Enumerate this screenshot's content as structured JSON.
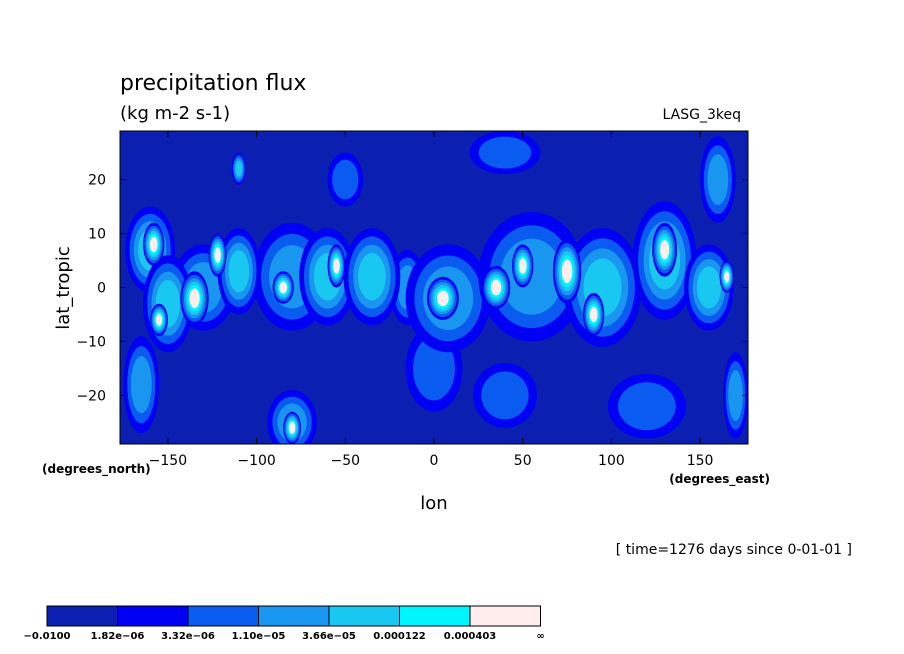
{
  "chart_data": {
    "type": "heatmap",
    "title": "precipitation flux",
    "units": "(kg m-2 s-1)",
    "dataset": "LASG_3keq",
    "xlabel": "lon",
    "ylabel": "lat_tropic",
    "x_units": "(degrees_east)",
    "y_units": "(degrees_north)",
    "time_note": "[ time=1276 days since 0-01-01 ]",
    "xlim": [
      -177,
      177
    ],
    "ylim": [
      -29,
      29
    ],
    "x_ticks": [
      -150,
      -100,
      -50,
      0,
      50,
      100,
      150
    ],
    "x_tick_labels": [
      "−150",
      "−100",
      "−50",
      "0",
      "50",
      "100",
      "150"
    ],
    "y_ticks": [
      20,
      10,
      0,
      -10,
      -20
    ],
    "y_tick_labels": [
      "20",
      "10",
      "0",
      "−10",
      "−20"
    ],
    "color_levels": [
      "−0.0100",
      "1.82e−06",
      "3.32e−06",
      "1.10e−05",
      "3.66e−05",
      "0.000122",
      "0.000403",
      "∞"
    ],
    "colors": [
      "#0b1fb0",
      "#0000f5",
      "#0a5cf0",
      "#1996f0",
      "#19c8f0",
      "#00f6ff",
      "#ffecec"
    ],
    "blobs": [
      {
        "lon": -158,
        "lat": 8,
        "rlon": 6,
        "rlat": 4,
        "level": 6
      },
      {
        "lon": -160,
        "lat": 7,
        "rlon": 14,
        "rlat": 8,
        "level": 4
      },
      {
        "lon": -155,
        "lat": -6,
        "rlon": 5,
        "rlat": 3,
        "level": 6
      },
      {
        "lon": -150,
        "lat": -3,
        "rlon": 14,
        "rlat": 9,
        "level": 4
      },
      {
        "lon": -135,
        "lat": -2,
        "rlon": 8,
        "rlat": 5,
        "level": 6
      },
      {
        "lon": -130,
        "lat": 0,
        "rlon": 18,
        "rlat": 8,
        "level": 3
      },
      {
        "lon": -122,
        "lat": 6,
        "rlon": 5,
        "rlat": 4,
        "level": 6
      },
      {
        "lon": -110,
        "lat": 3,
        "rlon": 12,
        "rlat": 8,
        "level": 4
      },
      {
        "lon": -85,
        "lat": 0,
        "rlon": 6,
        "rlat": 3,
        "level": 6
      },
      {
        "lon": -80,
        "lat": 2,
        "rlon": 22,
        "rlat": 10,
        "level": 3
      },
      {
        "lon": -55,
        "lat": 4,
        "rlon": 5,
        "rlat": 4,
        "level": 6
      },
      {
        "lon": -60,
        "lat": 2,
        "rlon": 16,
        "rlat": 9,
        "level": 4
      },
      {
        "lon": -35,
        "lat": 2,
        "rlon": 16,
        "rlat": 9,
        "level": 4
      },
      {
        "lon": -15,
        "lat": 0,
        "rlon": 10,
        "rlat": 7,
        "level": 3
      },
      {
        "lon": 5,
        "lat": -2,
        "rlon": 9,
        "rlat": 4,
        "level": 6
      },
      {
        "lon": 8,
        "lat": -2,
        "rlon": 24,
        "rlat": 10,
        "level": 3
      },
      {
        "lon": 35,
        "lat": 0,
        "rlon": 8,
        "rlat": 4,
        "level": 6
      },
      {
        "lon": 50,
        "lat": 4,
        "rlon": 6,
        "rlat": 4,
        "level": 6
      },
      {
        "lon": 55,
        "lat": 2,
        "rlon": 30,
        "rlat": 12,
        "level": 3
      },
      {
        "lon": 75,
        "lat": 3,
        "rlon": 8,
        "rlat": 6,
        "level": 6
      },
      {
        "lon": 90,
        "lat": -5,
        "rlon": 6,
        "rlat": 4,
        "level": 6
      },
      {
        "lon": 95,
        "lat": 0,
        "rlon": 22,
        "rlat": 11,
        "level": 4
      },
      {
        "lon": 130,
        "lat": 7,
        "rlon": 7,
        "rlat": 5,
        "level": 6
      },
      {
        "lon": 130,
        "lat": 5,
        "rlon": 18,
        "rlat": 11,
        "level": 4
      },
      {
        "lon": 155,
        "lat": 0,
        "rlon": 14,
        "rlat": 8,
        "level": 4
      },
      {
        "lon": 165,
        "lat": 2,
        "rlon": 4,
        "rlat": 3,
        "level": 6
      },
      {
        "lon": -80,
        "lat": -26,
        "rlon": 5,
        "rlat": 3,
        "level": 6
      },
      {
        "lon": -80,
        "lat": -25,
        "rlon": 14,
        "rlat": 6,
        "level": 3
      },
      {
        "lon": -165,
        "lat": -18,
        "rlon": 10,
        "rlat": 9,
        "level": 3
      },
      {
        "lon": 0,
        "lat": -15,
        "rlon": 16,
        "rlat": 8,
        "level": 2
      },
      {
        "lon": 40,
        "lat": -20,
        "rlon": 18,
        "rlat": 6,
        "level": 2
      },
      {
        "lon": 120,
        "lat": -22,
        "rlon": 22,
        "rlat": 6,
        "level": 2
      },
      {
        "lon": 170,
        "lat": -20,
        "rlon": 7,
        "rlat": 8,
        "level": 3
      },
      {
        "lon": 160,
        "lat": 20,
        "rlon": 10,
        "rlat": 8,
        "level": 3
      },
      {
        "lon": -110,
        "lat": 22,
        "rlon": 4,
        "rlat": 3,
        "level": 4
      },
      {
        "lon": -50,
        "lat": 20,
        "rlon": 10,
        "rlat": 5,
        "level": 2
      },
      {
        "lon": 40,
        "lat": 25,
        "rlon": 20,
        "rlat": 4,
        "level": 2
      }
    ]
  }
}
